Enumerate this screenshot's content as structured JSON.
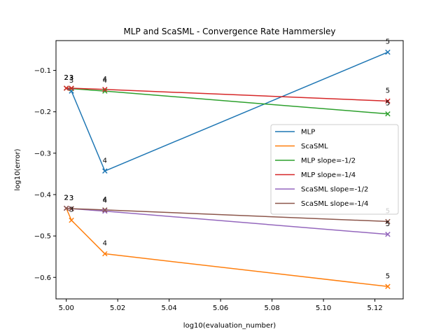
{
  "chart_data": {
    "type": "line",
    "title": "MLP and ScaSML - Convergence Rate Hammersley",
    "xlabel": "log10(evaluation_number)",
    "ylabel": "log10(error)",
    "xlim": [
      4.996,
      5.131
    ],
    "ylim": [
      -0.652,
      -0.028
    ],
    "xticks": [
      5.0,
      5.02,
      5.04,
      5.06,
      5.08,
      5.1,
      5.12
    ],
    "xtick_labels": [
      "5.00",
      "5.02",
      "5.04",
      "5.06",
      "5.08",
      "5.10",
      "5.12"
    ],
    "yticks": [
      -0.1,
      -0.2,
      -0.3,
      -0.4,
      -0.5,
      -0.6
    ],
    "ytick_labels": [
      "−0.1",
      "−0.2",
      "−0.3",
      "−0.4",
      "−0.5",
      "−0.6"
    ],
    "grid": false,
    "legend_position": "center-right",
    "series": [
      {
        "name": "MLP",
        "color": "#1f77b4",
        "x": [
          5.0,
          5.002,
          5.015,
          5.125
        ],
        "y": [
          -0.143,
          -0.15,
          -0.343,
          -0.056
        ],
        "markers": [
          false,
          true,
          true,
          true
        ],
        "labels": [
          "2",
          "3",
          "4",
          "5"
        ]
      },
      {
        "name": "ScaSML",
        "color": "#ff7f0e",
        "x": [
          5.0,
          5.002,
          5.015,
          5.125
        ],
        "y": [
          -0.433,
          -0.462,
          -0.543,
          -0.622
        ],
        "markers": [
          false,
          true,
          true,
          true
        ],
        "labels": [
          "2",
          "3",
          "4",
          "5"
        ]
      },
      {
        "name": "MLP slope=-1/2",
        "color": "#2ca02c",
        "x": [
          5.0,
          5.002,
          5.015,
          5.125
        ],
        "y": [
          -0.143,
          -0.144,
          -0.15,
          -0.205
        ],
        "markers": [
          true,
          true,
          true,
          true
        ],
        "labels": [
          "2",
          "3",
          "4",
          "5"
        ]
      },
      {
        "name": "MLP slope=-1/4",
        "color": "#d62728",
        "x": [
          5.0,
          5.002,
          5.015,
          5.125
        ],
        "y": [
          -0.143,
          -0.143,
          -0.146,
          -0.174
        ],
        "markers": [
          true,
          true,
          true,
          true
        ],
        "labels": [
          "2",
          "3",
          "4",
          "5"
        ]
      },
      {
        "name": "ScaSML slope=-1/2",
        "color": "#9467bd",
        "x": [
          5.0,
          5.002,
          5.015,
          5.125
        ],
        "y": [
          -0.433,
          -0.434,
          -0.44,
          -0.496
        ],
        "markers": [
          true,
          true,
          true,
          true
        ],
        "labels": [
          "2",
          "3",
          "4",
          "5"
        ]
      },
      {
        "name": "ScaSML slope=-1/4",
        "color": "#8c564b",
        "x": [
          5.0,
          5.002,
          5.015,
          5.125
        ],
        "y": [
          -0.433,
          -0.434,
          -0.437,
          -0.465
        ],
        "markers": [
          true,
          true,
          true,
          true
        ],
        "labels": [
          "2",
          "3",
          "4",
          "5"
        ]
      }
    ]
  }
}
